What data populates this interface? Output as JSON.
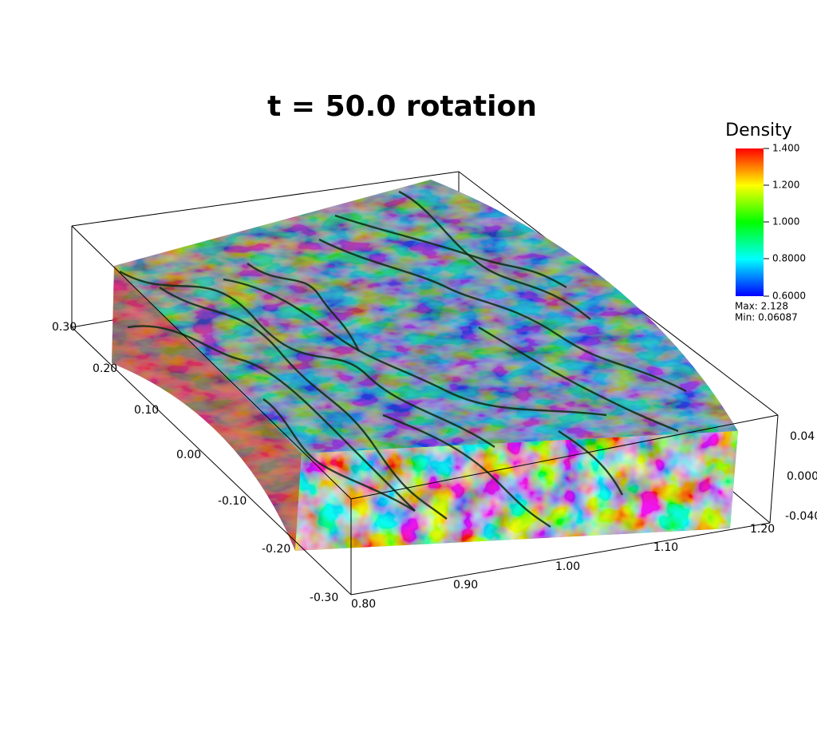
{
  "title": "t = 50.0 rotation",
  "colorbar": {
    "title": "Density",
    "ticks": [
      "1.400",
      "1.200",
      "1.000",
      "0.8000",
      "0.6000"
    ],
    "max": "Max: 2.128",
    "min": "Min: 0.06087"
  },
  "axes": {
    "y": [
      "0.30",
      "0.20",
      "0.10",
      "0.00",
      "-0.10",
      "-0.20",
      "-0.30"
    ],
    "x": [
      "0.80",
      "0.90",
      "1.00",
      "1.10",
      "1.20"
    ],
    "z": [
      "0.04",
      "0.000",
      "-0.040"
    ]
  }
}
